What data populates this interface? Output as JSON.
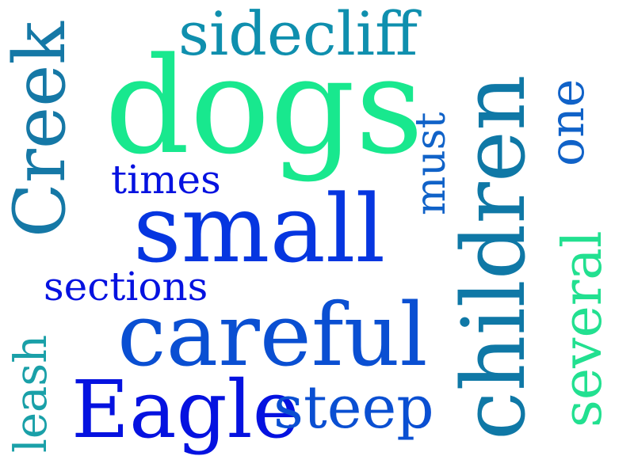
{
  "colors": {
    "teal": "#0a8aa8",
    "teal_dark": "#1578a6",
    "sea": "#1aa0a8",
    "mint": "#18e88e",
    "mint2": "#22e090",
    "blue": "#0636e0",
    "blue_mid": "#0a4fd2",
    "blue_deep": "#0512e0",
    "azure": "#1062c8"
  },
  "words": [
    {
      "id": "dogs",
      "text": "dogs"
    },
    {
      "id": "sidecliff",
      "text": "sidecliff"
    },
    {
      "id": "creek",
      "text": "Creek"
    },
    {
      "id": "children",
      "text": "children"
    },
    {
      "id": "one",
      "text": "one"
    },
    {
      "id": "must",
      "text": "must"
    },
    {
      "id": "times",
      "text": "times"
    },
    {
      "id": "small",
      "text": "small"
    },
    {
      "id": "several",
      "text": "several"
    },
    {
      "id": "sections",
      "text": "sections"
    },
    {
      "id": "careful",
      "text": "careful"
    },
    {
      "id": "leash",
      "text": "leash"
    },
    {
      "id": "eagle",
      "text": "Eagle"
    },
    {
      "id": "steep",
      "text": "steep"
    }
  ]
}
